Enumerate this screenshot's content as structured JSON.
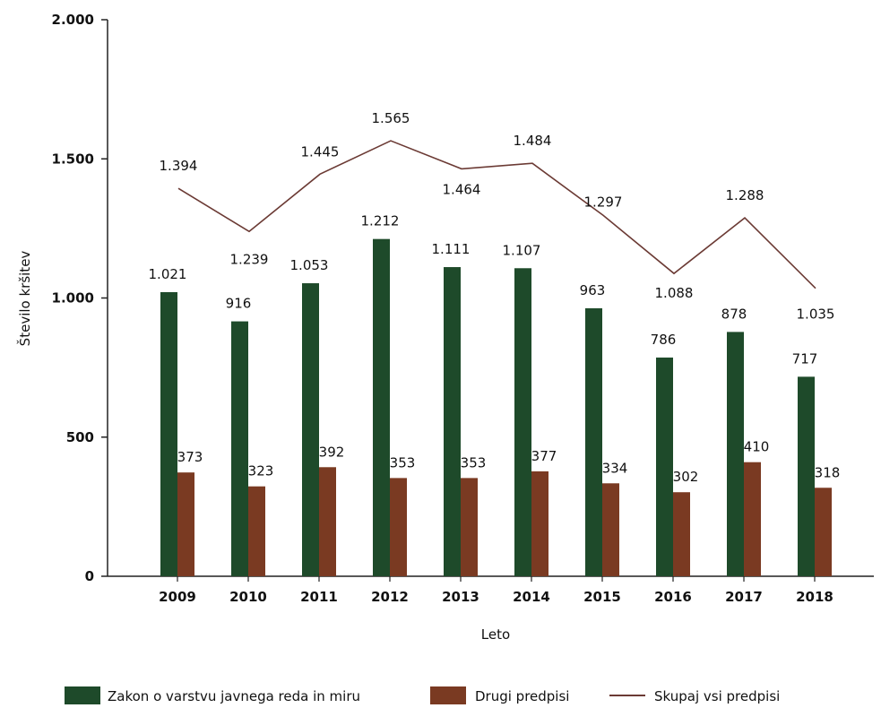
{
  "chart_data": {
    "type": "bar",
    "categories": [
      "2009",
      "2010",
      "2011",
      "2012",
      "2013",
      "2014",
      "2015",
      "2016",
      "2017",
      "2018"
    ],
    "category_labels": [
      "2009",
      "2010",
      "2011",
      "2012",
      "2013",
      "2014",
      "2015",
      "2016",
      "2017",
      "2018"
    ],
    "series": [
      {
        "name": "Zakon o varstvu javnega reda in miru",
        "kind": "bar",
        "color": "#1e4a2a",
        "values": [
          1021,
          916,
          1053,
          1212,
          1111,
          1107,
          963,
          786,
          878,
          717
        ],
        "labels": [
          "1.021",
          "916",
          "1.053",
          "1.212",
          "1.111",
          "1.107",
          "963",
          "786",
          "878",
          "717"
        ]
      },
      {
        "name": "Drugi predpisi",
        "kind": "bar",
        "color": "#7a3a22",
        "values": [
          373,
          323,
          392,
          353,
          353,
          377,
          334,
          302,
          410,
          318
        ],
        "labels": [
          "373",
          "323",
          "392",
          "353",
          "353",
          "377",
          "334",
          "302",
          "410",
          "318"
        ]
      },
      {
        "name": "Skupaj vsi predpisi",
        "kind": "line",
        "color": "#6b3a34",
        "values": [
          1394,
          1239,
          1445,
          1565,
          1464,
          1484,
          1297,
          1088,
          1288,
          1035
        ],
        "labels": [
          "1.394",
          "1.239",
          "1.445",
          "1.565",
          "1.464",
          "1.484",
          "1.297",
          "1.088",
          "1.288",
          "1.035"
        ]
      }
    ],
    "xlabel": "Leto",
    "ylabel": "Število kršitev",
    "ylim": [
      0,
      2000
    ],
    "yticks": [
      0,
      500,
      1000,
      1500,
      2000
    ],
    "ytick_labels": [
      "0",
      "500",
      "1.000",
      "1.500",
      "2.000"
    ],
    "grid": false,
    "legend_position": "bottom"
  }
}
